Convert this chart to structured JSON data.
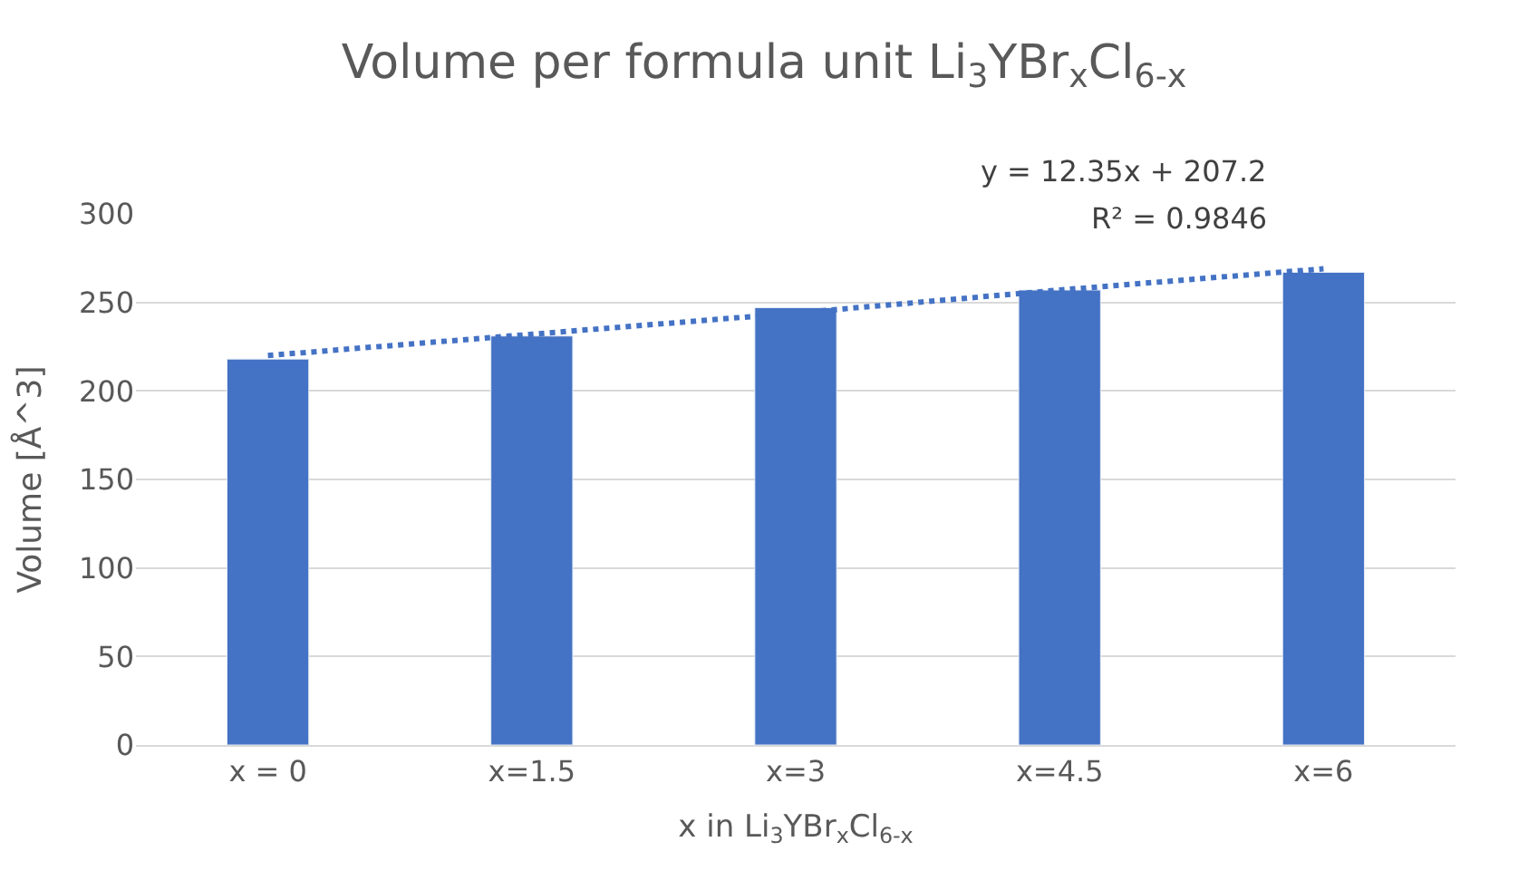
{
  "chart_data": {
    "type": "bar",
    "title": "Volume per formula unit Li$_{3}$YBr$_{x}$Cl$_{6-x}$",
    "xlabel": "x in Li$_{3}$YBr$_{x}$Cl$_{6-x}$",
    "ylabel": "Volume [Å^3]",
    "categories": [
      "x = 0",
      "x=1.5",
      "x=3",
      "x=4.5",
      "x=6"
    ],
    "series": [
      {
        "color": "#4472c4",
        "values": [
          218,
          231,
          247,
          257,
          267
        ]
      },
      {
        "type": "line",
        "color": "#4472c4",
        "line_style": "dotted",
        "values": [
          220,
          232,
          244,
          257,
          269
        ]
      }
    ],
    "annotations": [
      "y = 12.35x + 207.2",
      "R² = 0.9846"
    ],
    "ylim": [
      0,
      300
    ],
    "yticks": [
      0,
      50,
      100,
      150,
      200,
      250,
      300
    ],
    "grid": "y"
  }
}
